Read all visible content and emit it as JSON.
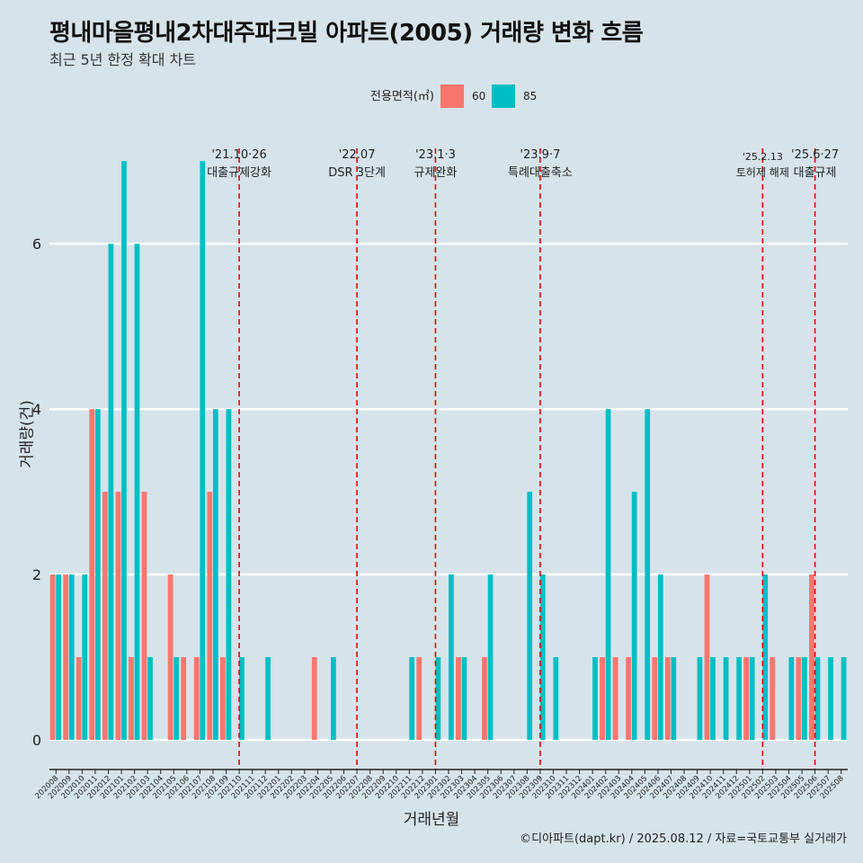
{
  "header": {
    "title": "평내마을평내2차대주파크빌 아파트(2005) 거래량 변화 흐름",
    "subtitle": "최근 5년 한정 확대 차트"
  },
  "legend": {
    "title": "전용면적(㎡)",
    "items": [
      {
        "label": "60",
        "color": "#F8766D"
      },
      {
        "label": "85",
        "color": "#00BFC4"
      }
    ]
  },
  "caption": "©디아파트(dapt.kr) / 2025.08.12 / 자료=국토교통부 실거래가",
  "chart_data": {
    "type": "bar",
    "xlabel": "거래년월",
    "ylabel": "거래량(건)",
    "ylim": [
      0,
      7.35
    ],
    "yticks": [
      0,
      2,
      4,
      6
    ],
    "grid": true,
    "legend_position": "top",
    "categories": [
      "202008",
      "202009",
      "202010",
      "202011",
      "202012",
      "202101",
      "202102",
      "202103",
      "202104",
      "202105",
      "202106",
      "202107",
      "202108",
      "202109",
      "202110",
      "202111",
      "202112",
      "202201",
      "202202",
      "202203",
      "202204",
      "202205",
      "202206",
      "202207",
      "202208",
      "202209",
      "202210",
      "202211",
      "202212",
      "202301",
      "202302",
      "202303",
      "202304",
      "202305",
      "202306",
      "202307",
      "202308",
      "202309",
      "202310",
      "202311",
      "202312",
      "202401",
      "202402",
      "202403",
      "202404",
      "202405",
      "202406",
      "202407",
      "202408",
      "202409",
      "202410",
      "202411",
      "202412",
      "202501",
      "202502",
      "202503",
      "202504",
      "202505",
      "202506",
      "202507",
      "202508"
    ],
    "series": [
      {
        "name": "60",
        "color": "#F8766D",
        "values": [
          2,
          2,
          1,
          4,
          3,
          3,
          1,
          3,
          null,
          2,
          1,
          1,
          3,
          1,
          null,
          null,
          null,
          null,
          null,
          null,
          1,
          null,
          null,
          null,
          null,
          null,
          null,
          null,
          1,
          null,
          null,
          1,
          null,
          1,
          null,
          null,
          null,
          null,
          null,
          null,
          null,
          null,
          1,
          1,
          1,
          null,
          1,
          1,
          null,
          null,
          2,
          null,
          null,
          1,
          null,
          1,
          null,
          1,
          2,
          null,
          null
        ]
      },
      {
        "name": "85",
        "color": "#00BFC4",
        "values": [
          2,
          2,
          2,
          4,
          6,
          7,
          6,
          1,
          null,
          1,
          null,
          7,
          4,
          4,
          1,
          null,
          1,
          null,
          null,
          null,
          null,
          1,
          null,
          null,
          null,
          null,
          null,
          1,
          null,
          1,
          2,
          1,
          null,
          2,
          null,
          null,
          3,
          2,
          1,
          null,
          null,
          1,
          4,
          null,
          3,
          4,
          2,
          1,
          null,
          1,
          1,
          1,
          1,
          1,
          2,
          null,
          1,
          1,
          1,
          1,
          1
        ]
      }
    ],
    "annotations": [
      {
        "category": "202110",
        "date": "'21.10·26",
        "label": "대출규제강화"
      },
      {
        "category": "202207",
        "date": "'22.07",
        "label": "DSR 3단계"
      },
      {
        "category": "202301",
        "date": "'23.1·3",
        "label": "규제완화"
      },
      {
        "category": "202309",
        "date": "'23.9·7",
        "label": "특례대출축소"
      },
      {
        "category": "202502",
        "date": "'25.2.13",
        "label": "토허제 해제"
      },
      {
        "category": "202506",
        "date": "'25.6·27",
        "label": "대출규제"
      }
    ]
  }
}
